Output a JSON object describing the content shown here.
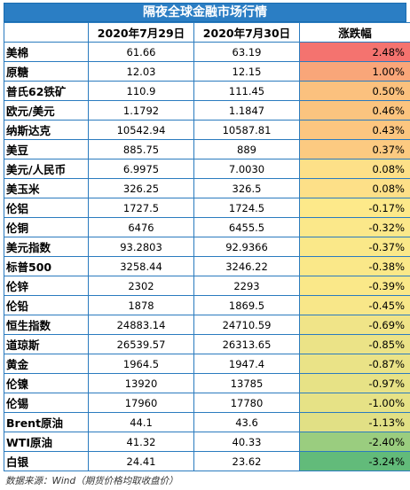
{
  "title": "隔夜全球金融市场行情",
  "colors": {
    "header_bar": "#2b7ec4",
    "positive_top": "#f4736f",
    "neutral": "#fde98a",
    "negative_bottom": "#62bb7a"
  },
  "columns": [
    "",
    "2020年7月29日",
    "2020年7月30日",
    "涨跌幅"
  ],
  "rows": [
    {
      "name": "美棉",
      "d1": "61.66",
      "d2": "63.19",
      "chg": "2.48%",
      "color": "#f4736f"
    },
    {
      "name": "原糖",
      "d1": "12.03",
      "d2": "12.15",
      "chg": "1.00%",
      "color": "#f9a679"
    },
    {
      "name": "普氏62铁矿",
      "d1": "110.9",
      "d2": "111.45",
      "chg": "0.50%",
      "color": "#fbc17e"
    },
    {
      "name": "欧元/美元",
      "d1": "1.1792",
      "d2": "1.1847",
      "chg": "0.46%",
      "color": "#fbc47f"
    },
    {
      "name": "纳斯达克",
      "d1": "10542.94",
      "d2": "10587.81",
      "chg": "0.43%",
      "color": "#fcc680"
    },
    {
      "name": "美豆",
      "d1": "885.75",
      "d2": "889",
      "chg": "0.37%",
      "color": "#fcca81"
    },
    {
      "name": "美元/人民币",
      "d1": "6.9975",
      "d2": "7.0030",
      "chg": "0.08%",
      "color": "#fde088"
    },
    {
      "name": "美玉米",
      "d1": "326.25",
      "d2": "326.5",
      "chg": "0.08%",
      "color": "#fde088"
    },
    {
      "name": "伦铝",
      "d1": "1727.5",
      "d2": "1724.5",
      "chg": "-0.17%",
      "color": "#fde98a"
    },
    {
      "name": "伦铜",
      "d1": "6476",
      "d2": "6455.5",
      "chg": "-0.32%",
      "color": "#fbe88a"
    },
    {
      "name": "美元指数",
      "d1": "93.2803",
      "d2": "92.9366",
      "chg": "-0.37%",
      "color": "#fae889"
    },
    {
      "name": "标普500",
      "d1": "3258.44",
      "d2": "3246.22",
      "chg": "-0.38%",
      "color": "#fae889"
    },
    {
      "name": "伦锌",
      "d1": "2302",
      "d2": "2293",
      "chg": "-0.39%",
      "color": "#fae889"
    },
    {
      "name": "伦铅",
      "d1": "1878",
      "d2": "1869.5",
      "chg": "-0.45%",
      "color": "#f8e789"
    },
    {
      "name": "恒生指数",
      "d1": "24883.14",
      "d2": "24710.59",
      "chg": "-0.69%",
      "color": "#f0e488"
    },
    {
      "name": "道琼斯",
      "d1": "26539.57",
      "d2": "26313.65",
      "chg": "-0.85%",
      "color": "#ebe387"
    },
    {
      "name": "黄金",
      "d1": "1964.5",
      "d2": "1947.4",
      "chg": "-0.87%",
      "color": "#eae387"
    },
    {
      "name": "伦镍",
      "d1": "13920",
      "d2": "13785",
      "chg": "-0.97%",
      "color": "#e7e286"
    },
    {
      "name": "伦锡",
      "d1": "17960",
      "d2": "17780",
      "chg": "-1.00%",
      "color": "#e6e286"
    },
    {
      "name": "Brent原油",
      "d1": "44.1",
      "d2": "43.6",
      "chg": "-1.13%",
      "color": "#e1e085"
    },
    {
      "name": "WTI原油",
      "d1": "41.32",
      "d2": "40.33",
      "chg": "-2.40%",
      "color": "#9acd7f"
    },
    {
      "name": "白银",
      "d1": "24.41",
      "d2": "23.62",
      "chg": "-3.24%",
      "color": "#62bb7a"
    }
  ],
  "source_note": "数据来源：Wind（期货价格均取收盘价）"
}
